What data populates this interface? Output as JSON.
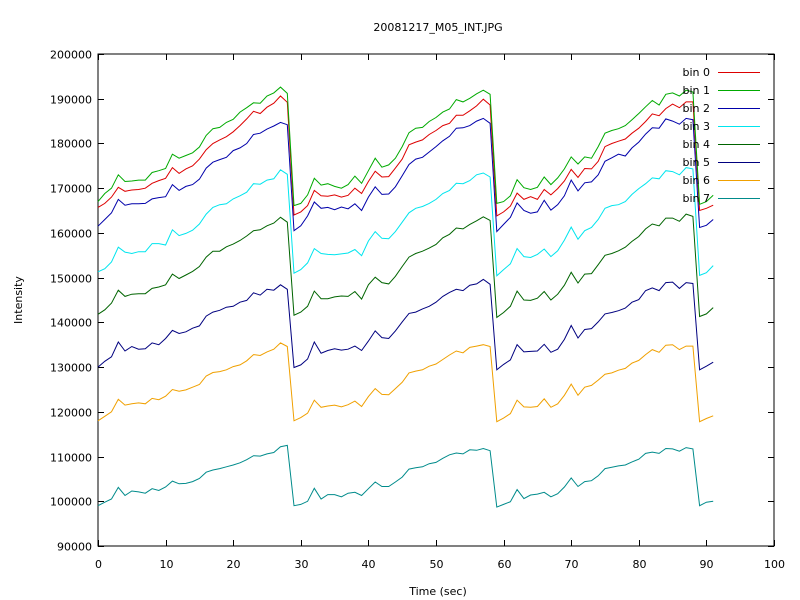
{
  "chart_data": {
    "type": "line",
    "title": "20081217_M05_INT.JPG",
    "xlabel": "Time (sec)",
    "ylabel": "Intensity",
    "xlim": [
      0,
      100
    ],
    "ylim": [
      90000,
      200000
    ],
    "xticks": [
      0,
      10,
      20,
      30,
      40,
      50,
      60,
      70,
      80,
      90,
      100
    ],
    "yticks": [
      90000,
      100000,
      110000,
      120000,
      130000,
      140000,
      150000,
      160000,
      170000,
      180000,
      190000,
      200000
    ],
    "grid": false,
    "legend_position": "top-right",
    "x": [
      0,
      1,
      2,
      3,
      4,
      5,
      6,
      7,
      8,
      9,
      10,
      11,
      12,
      13,
      14,
      15,
      16,
      17,
      18,
      19,
      20,
      21,
      22,
      23,
      24,
      25,
      26,
      27,
      28,
      29,
      30,
      31,
      32,
      33,
      34,
      35,
      36,
      37,
      38,
      39,
      40,
      41,
      42,
      43,
      44,
      45,
      46,
      47,
      48,
      49,
      50,
      51,
      52,
      53,
      54,
      55,
      56,
      57,
      58,
      59,
      60,
      61,
      62,
      63,
      64,
      65,
      66,
      67,
      68,
      69,
      70,
      71,
      72,
      73,
      74,
      75,
      76,
      77,
      78,
      79,
      80,
      81,
      82,
      83,
      84,
      85,
      86,
      87,
      88,
      89,
      90,
      91,
      92
    ],
    "series": [
      {
        "name": "bin 0",
        "color": "#dd0000",
        "values": [
          165700,
          166600,
          168000,
          170200,
          169300,
          169600,
          169700,
          170000,
          171100,
          171700,
          172200,
          174600,
          173300,
          174300,
          175000,
          176500,
          178600,
          180000,
          180800,
          181500,
          182600,
          184000,
          185500,
          187200,
          186700,
          188100,
          189000,
          190600,
          189200,
          164000,
          164700,
          166100,
          169500,
          168300,
          168200,
          168500,
          168000,
          168400,
          170000,
          168800,
          171500,
          173800,
          172500,
          172600,
          174500,
          176500,
          179700,
          180300,
          180800,
          182000,
          182900,
          184000,
          184500,
          186300,
          186300,
          187300,
          188400,
          189900,
          188600,
          163800,
          164700,
          166000,
          168900,
          167500,
          168100,
          167500,
          169700,
          168500,
          169900,
          171600,
          174200,
          172400,
          174400,
          174300,
          176000,
          179300,
          180000,
          180500,
          181000,
          182300,
          183400,
          184900,
          186600,
          186200,
          187800,
          188800,
          188000,
          189300,
          189300,
          165000,
          165500,
          166200,
          null
        ]
      },
      {
        "name": "bin 1",
        "color": "#00aa00",
        "values": [
          167000,
          168800,
          170000,
          173000,
          171500,
          171600,
          171800,
          171800,
          173500,
          173900,
          174400,
          177600,
          176700,
          177300,
          177900,
          179200,
          181800,
          183300,
          183600,
          184700,
          185400,
          187000,
          188000,
          189100,
          189000,
          190600,
          191300,
          192600,
          191200,
          166100,
          166600,
          168500,
          172200,
          170700,
          171000,
          170400,
          170000,
          170800,
          172700,
          171100,
          173900,
          176700,
          174700,
          175200,
          176700,
          179300,
          182400,
          183400,
          183600,
          184900,
          185800,
          187000,
          187700,
          189800,
          189300,
          190100,
          191100,
          191900,
          191000,
          166600,
          167000,
          168300,
          171900,
          170100,
          169700,
          170200,
          172500,
          170800,
          172300,
          174300,
          177000,
          175400,
          177000,
          176700,
          179300,
          182300,
          182900,
          183300,
          184000,
          185300,
          186700,
          188200,
          189600,
          188600,
          191000,
          191300,
          190600,
          191900,
          191500,
          166400,
          167000,
          168400,
          null
        ]
      },
      {
        "name": "bin 2",
        "color": "#0000aa",
        "values": [
          161500,
          163000,
          164500,
          167500,
          166200,
          166500,
          166500,
          166600,
          167600,
          167900,
          168100,
          170800,
          169500,
          170400,
          170800,
          172000,
          174500,
          175800,
          176400,
          176900,
          178400,
          179000,
          180000,
          182000,
          182300,
          183200,
          183900,
          184700,
          184200,
          160500,
          161600,
          163800,
          166900,
          165500,
          165700,
          165200,
          165800,
          165400,
          166500,
          165000,
          168000,
          170300,
          168600,
          168700,
          170300,
          172800,
          175300,
          176500,
          176900,
          178100,
          179300,
          180600,
          181600,
          183400,
          183500,
          184000,
          185000,
          185600,
          184500,
          160300,
          161900,
          163500,
          166700,
          165000,
          164400,
          164700,
          167300,
          165100,
          166300,
          168300,
          171800,
          169400,
          171200,
          171400,
          173000,
          176000,
          176800,
          177600,
          177200,
          179000,
          180300,
          182100,
          183500,
          183400,
          185500,
          185000,
          184300,
          185600,
          185300,
          161200,
          161700,
          163000,
          null
        ]
      },
      {
        "name": "bin 3",
        "color": "#00e5ee",
        "values": [
          151300,
          152000,
          153500,
          156800,
          155700,
          155400,
          155800,
          155800,
          157600,
          157600,
          157300,
          160700,
          159400,
          159900,
          160600,
          162000,
          164200,
          165700,
          166300,
          166500,
          167600,
          168300,
          169100,
          171000,
          170900,
          171800,
          172100,
          174100,
          173100,
          151000,
          151800,
          153300,
          156500,
          155400,
          155200,
          155100,
          155300,
          155500,
          156300,
          154900,
          158200,
          160300,
          158800,
          158700,
          160300,
          162400,
          164500,
          165500,
          165900,
          166600,
          167500,
          168800,
          169500,
          171100,
          171000,
          171700,
          173000,
          173400,
          172500,
          150400,
          151800,
          153100,
          156500,
          154700,
          154500,
          155200,
          156400,
          154700,
          156000,
          158400,
          161300,
          158600,
          160500,
          161200,
          163000,
          165500,
          166100,
          166300,
          167000,
          168600,
          169900,
          171000,
          172300,
          172100,
          173900,
          173700,
          173000,
          174600,
          174300,
          150500,
          151100,
          152700,
          null
        ]
      },
      {
        "name": "bin 4",
        "color": "#006400",
        "values": [
          141800,
          142800,
          144300,
          147200,
          145800,
          146300,
          146400,
          146400,
          147600,
          147900,
          148400,
          150800,
          149800,
          150600,
          151400,
          152500,
          154600,
          155900,
          155900,
          156900,
          157500,
          158300,
          159300,
          160500,
          160700,
          161600,
          162200,
          163500,
          162400,
          141600,
          142300,
          143600,
          147000,
          145300,
          145300,
          145700,
          145900,
          145800,
          146900,
          145200,
          148400,
          150100,
          148900,
          148600,
          150300,
          152500,
          154600,
          155400,
          155900,
          156600,
          157400,
          158900,
          159700,
          161100,
          160900,
          161900,
          162700,
          163600,
          162800,
          141100,
          142200,
          143600,
          147000,
          145000,
          144900,
          145400,
          146900,
          145000,
          146300,
          148300,
          151200,
          148800,
          150800,
          150900,
          152900,
          155000,
          155400,
          156000,
          156800,
          158100,
          159200,
          160900,
          162000,
          161600,
          163300,
          163300,
          162600,
          164200,
          163700,
          141300,
          141900,
          143300,
          null
        ]
      },
      {
        "name": "bin 5",
        "color": "#00007f",
        "values": [
          130000,
          131300,
          132300,
          135600,
          133600,
          134600,
          134000,
          134100,
          135400,
          135000,
          136400,
          138200,
          137500,
          137900,
          138700,
          139200,
          141400,
          142300,
          142700,
          143400,
          143600,
          144500,
          144900,
          146600,
          146100,
          147400,
          147200,
          148400,
          147400,
          129900,
          130500,
          131800,
          135600,
          133100,
          133700,
          134100,
          133800,
          134000,
          134700,
          133700,
          135800,
          138100,
          136600,
          136400,
          138100,
          140100,
          142000,
          142300,
          143000,
          143600,
          144500,
          145800,
          146700,
          147400,
          147100,
          148300,
          148600,
          149600,
          148500,
          129400,
          130600,
          131600,
          135000,
          133400,
          133500,
          133600,
          135100,
          133300,
          134000,
          136200,
          139300,
          136500,
          138400,
          138600,
          140100,
          141900,
          142200,
          142600,
          143200,
          144500,
          145100,
          147100,
          147700,
          147100,
          148900,
          149000,
          147600,
          148900,
          148700,
          129400,
          130200,
          131100,
          null
        ]
      },
      {
        "name": "bin 6",
        "color": "#f0a000",
        "values": [
          118000,
          119000,
          120000,
          122800,
          121500,
          121800,
          122000,
          121800,
          123000,
          122700,
          123500,
          125000,
          124600,
          124900,
          125500,
          126100,
          128000,
          128800,
          129000,
          129400,
          130100,
          130500,
          131400,
          132800,
          132600,
          133400,
          134000,
          135400,
          134600,
          118000,
          118700,
          119700,
          122600,
          121000,
          121300,
          121500,
          121100,
          121600,
          122400,
          121200,
          123400,
          125200,
          123900,
          123800,
          125200,
          126600,
          128700,
          129100,
          129400,
          130200,
          130700,
          131700,
          132700,
          133600,
          133200,
          134400,
          134700,
          135000,
          134600,
          117800,
          118600,
          119600,
          122600,
          121100,
          121000,
          121200,
          122900,
          121000,
          121800,
          123700,
          126200,
          123700,
          125500,
          125900,
          127100,
          128400,
          128700,
          129300,
          129700,
          130900,
          131500,
          132800,
          133900,
          133300,
          134900,
          135000,
          133900,
          134700,
          134700,
          117800,
          118500,
          119100,
          null
        ]
      },
      {
        "name": "bin 7",
        "color": "#008b8b",
        "values": [
          99000,
          99800,
          100500,
          103100,
          101300,
          102300,
          102100,
          101800,
          102800,
          102400,
          103200,
          104500,
          103900,
          104000,
          104400,
          105100,
          106500,
          107000,
          107300,
          107700,
          108100,
          108600,
          109300,
          110200,
          110100,
          110600,
          110900,
          112200,
          112500,
          99000,
          99300,
          100000,
          102900,
          100500,
          101500,
          101500,
          101000,
          101800,
          102000,
          101300,
          102800,
          104300,
          103300,
          103300,
          104300,
          105400,
          107200,
          107500,
          107700,
          108400,
          108700,
          109600,
          110400,
          110800,
          110600,
          111500,
          111400,
          111800,
          111300,
          98700,
          99300,
          99900,
          102600,
          100600,
          101400,
          101600,
          102000,
          101000,
          101700,
          103200,
          105200,
          103300,
          104400,
          104600,
          105700,
          107300,
          107600,
          107900,
          108100,
          108800,
          109400,
          110700,
          111000,
          110700,
          111800,
          111700,
          111200,
          112000,
          111700,
          99000,
          99800,
          100000,
          null
        ]
      }
    ]
  }
}
